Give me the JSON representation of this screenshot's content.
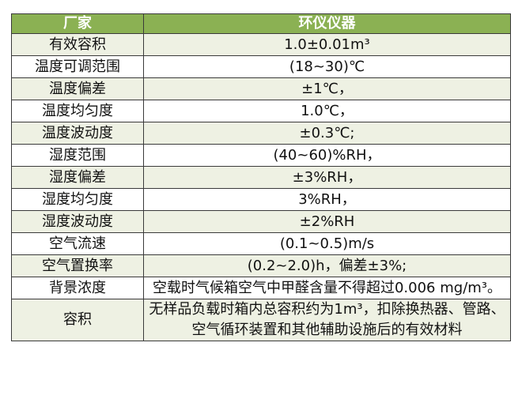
{
  "header": {
    "col1": "厂家",
    "col2": "环仪仪器"
  },
  "colors": {
    "header_bg": "#8bb153",
    "alt_row_bg": "#eef1e3"
  },
  "rows": [
    {
      "label": "有效容积",
      "value": "1.0±0.01m³"
    },
    {
      "label": "温度可调范围",
      "value": "(18~30)℃"
    },
    {
      "label": "温度偏差",
      "value": "±1℃，"
    },
    {
      "label": "温度均匀度",
      "value": "1.0℃，"
    },
    {
      "label": "温度波动度",
      "value": "±0.3℃;"
    },
    {
      "label": "湿度范围",
      "value": "(40~60)%RH，"
    },
    {
      "label": "湿度偏差",
      "value": "±3%RH，"
    },
    {
      "label": "湿度均匀度",
      "value": "3%RH，"
    },
    {
      "label": "湿度波动度",
      "value": "±2%RH"
    },
    {
      "label": "空气流速",
      "value": "(0.1~0.5)m/s"
    },
    {
      "label": "空气置换率",
      "value": "(0.2~2.0)h，偏差±3%;"
    },
    {
      "label": "背景浓度",
      "value": "空载时气候箱空气中甲醛含量不得超过0.006 mg/m³。"
    },
    {
      "label": "容积",
      "value": "无样品负载时箱内总容积约为1m³，扣除换热器、管路、空气循环装置和其他辅助设施后的有效材料"
    }
  ]
}
